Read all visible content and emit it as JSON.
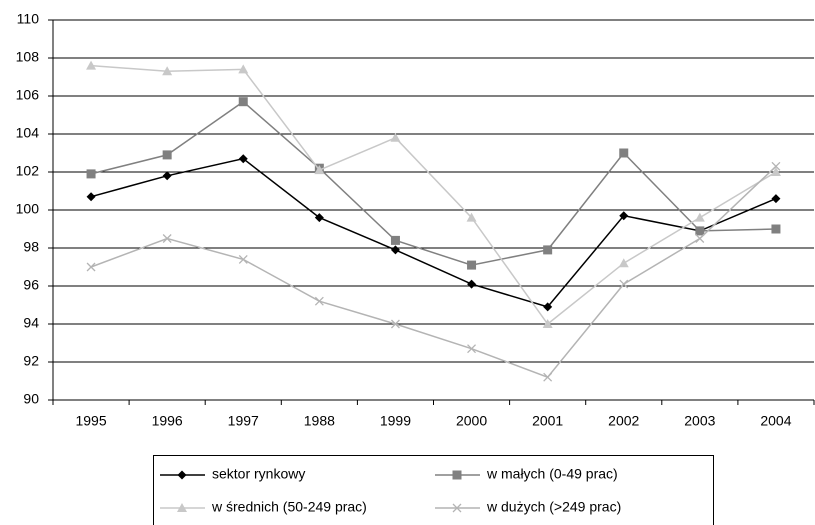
{
  "chart_data": {
    "type": "line",
    "categories": [
      "1995",
      "1996",
      "1997",
      "1988",
      "1999",
      "2000",
      "2001",
      "2002",
      "2003",
      "2004"
    ],
    "ylim": [
      90,
      110
    ],
    "yticks": [
      90,
      92,
      94,
      96,
      98,
      100,
      102,
      104,
      106,
      108,
      110
    ],
    "grid": true,
    "legend": "bottom",
    "series": [
      {
        "name": "sektor rynkowy",
        "color": "#000000",
        "marker": "diamond",
        "values": [
          100.7,
          101.8,
          102.7,
          99.6,
          97.9,
          96.1,
          94.9,
          99.7,
          98.9,
          100.6
        ]
      },
      {
        "name": "w małych (0-49 prac)",
        "color": "#808080",
        "marker": "square",
        "values": [
          101.9,
          102.9,
          105.7,
          102.2,
          98.4,
          97.1,
          97.9,
          103.0,
          98.9,
          99.0
        ]
      },
      {
        "name": "w średnich (50-249 prac)",
        "color": "#c8c8c8",
        "marker": "triangle",
        "values": [
          107.6,
          107.3,
          107.4,
          102.1,
          103.8,
          99.6,
          94.0,
          97.2,
          99.6,
          102.0
        ]
      },
      {
        "name": "w dużych (>249 prac)",
        "color": "#b4b4b4",
        "marker": "x",
        "values": [
          97.0,
          98.5,
          97.4,
          95.2,
          94.0,
          92.7,
          91.2,
          96.1,
          98.5,
          102.3
        ]
      }
    ]
  }
}
